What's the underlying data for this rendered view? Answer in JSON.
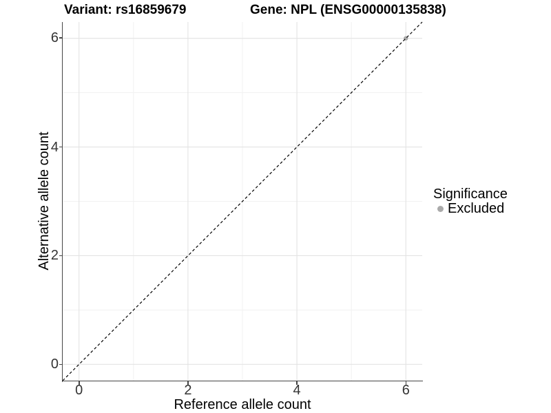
{
  "titles": {
    "variant": "Variant: rs16859679",
    "gene": "Gene: NPL (ENSG00000135838)"
  },
  "axes": {
    "x": {
      "label": "Reference allele count",
      "ticks": [
        "0",
        "2",
        "4",
        "6"
      ]
    },
    "y": {
      "label": "Alternative allele count",
      "ticks": [
        "0",
        "2",
        "4",
        "6"
      ]
    }
  },
  "legend": {
    "title": "Significance",
    "items": [
      {
        "label": "Excluded",
        "color": "#aaaaaa"
      }
    ]
  },
  "colors": {
    "background": "#ffffff",
    "grid_major": "#e3e3e3",
    "grid_minor": "#f1f1f1",
    "axis_line": "#444444",
    "tick_text": "#333333",
    "text": "#000000"
  },
  "chart_data": {
    "type": "scatter",
    "title_left": "Variant: rs16859679",
    "title_right": "Gene: NPL (ENSG00000135838)",
    "xlabel": "Reference allele count",
    "ylabel": "Alternative allele count",
    "xlim": [
      -0.3,
      6.3
    ],
    "ylim": [
      -0.3,
      6.3
    ],
    "x_major_ticks": [
      0,
      2,
      4,
      6
    ],
    "y_major_ticks": [
      0,
      2,
      4,
      6
    ],
    "x_minor_ticks": [
      1,
      3,
      5
    ],
    "y_minor_ticks": [
      1,
      3,
      5
    ],
    "grid": "major+minor",
    "legend_position": "right",
    "series": [
      {
        "name": "Excluded",
        "color": "#aaaaaa",
        "points": [
          {
            "x": 6,
            "y": 6
          }
        ]
      }
    ],
    "reference_line": {
      "type": "identity (y = x)",
      "style": "dashed",
      "color": "#000000",
      "x0": -0.3,
      "y0": -0.3,
      "x1": 6.3,
      "y1": 6.3
    }
  }
}
